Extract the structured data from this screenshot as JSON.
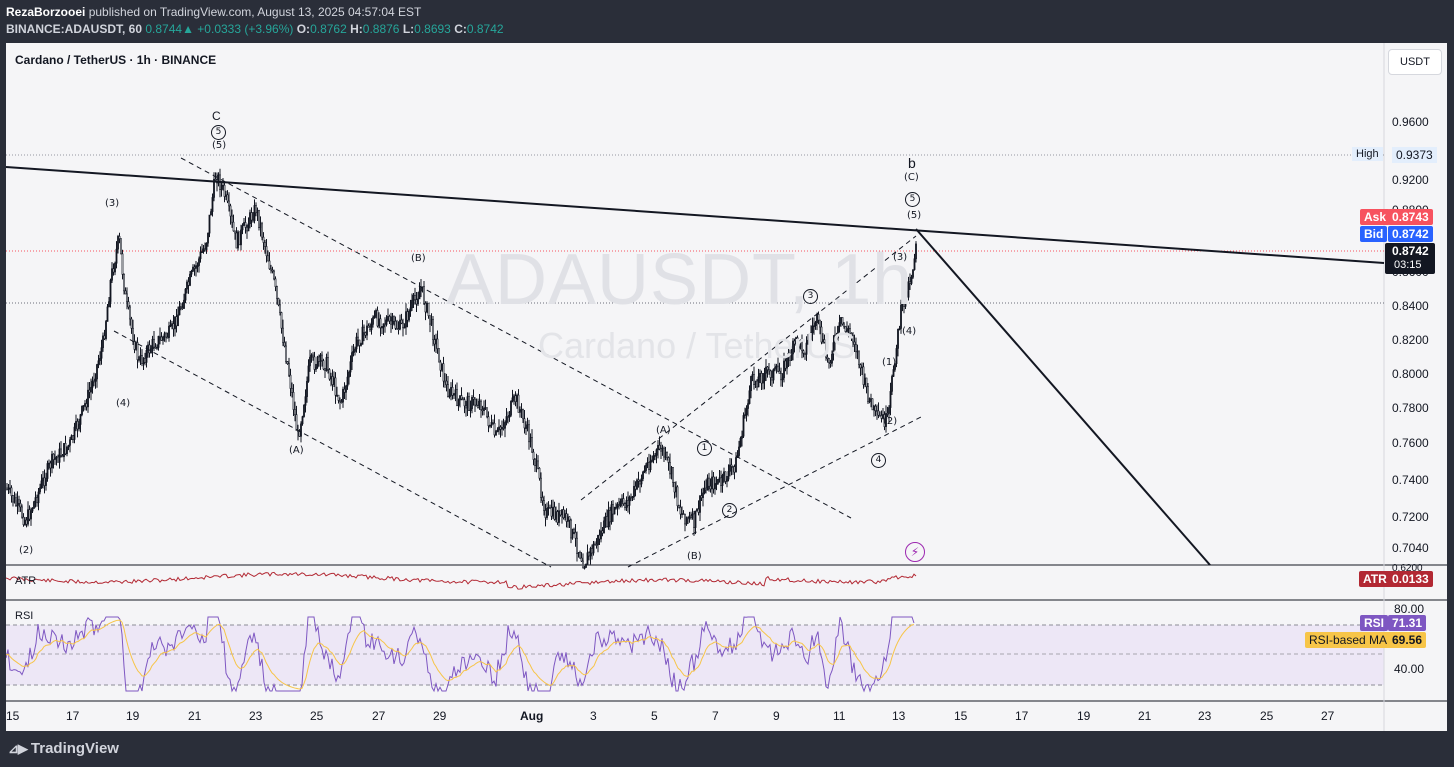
{
  "header": {
    "author": "RezaBorzooei",
    "published_text": " published on TradingView.com, August 13, 2025 04:57:04 EST",
    "symbol_line": "BINANCE:ADAUSDT, 60",
    "last": "0.8744",
    "change": "+0.0333 (+3.96%)",
    "o_label": "O:",
    "o": "0.8762",
    "h_label": "H:",
    "h": "0.8876",
    "l_label": "L:",
    "l": "0.8693",
    "c_label": "C:",
    "c": "0.8742",
    "up_arrow": "▲"
  },
  "chart": {
    "symbol_title": "Cardano / TetherUS · 1h · BINANCE",
    "watermark_symbol": "ADAUSDT, 1h",
    "watermark_name": "Cardano / TetherUS",
    "currency_button": "USDT",
    "price_axis": [
      "0.9600",
      "0.9200",
      "0.8800",
      "0.8600",
      "0.8400",
      "0.8200",
      "0.8000",
      "0.7800",
      "0.7600",
      "0.7400",
      "0.7200",
      "0.7040",
      "0.6200"
    ],
    "x_axis": [
      "15",
      "17",
      "19",
      "21",
      "23",
      "25",
      "27",
      "29",
      "Aug",
      "3",
      "5",
      "7",
      "9",
      "11",
      "13",
      "15",
      "17",
      "19",
      "21",
      "23",
      "25",
      "27"
    ],
    "high_label": "High",
    "high_value": "0.9373",
    "ask_label": "Ask",
    "ask_value": "0.8743",
    "bid_label": "Bid",
    "bid_value": "0.8742",
    "last_value": "0.8742",
    "countdown": "03:15",
    "wave_labels": {
      "c_top": "C",
      "c_circ": "5",
      "c_5": "(5)",
      "l3": "(3)",
      "l4": "(4)",
      "l2": "(2)",
      "lA": "(A)",
      "lB": "(B)",
      "b": "b",
      "bC": "(C)",
      "b_circ": "5",
      "b5": "(5)",
      "r3": "(3)",
      "r4": "(4)",
      "r1": "(1)",
      "r2": "(2)",
      "mA": "(A)",
      "mB": "(B)",
      "circ1": "1",
      "circ2": "2",
      "circ3": "3",
      "circ4": "4"
    },
    "colors": {
      "up": "#26a69a",
      "ask": "#f7525f",
      "bid": "#2962ff",
      "atr": "#b22833",
      "rsi": "#7e57c2",
      "rsi_ma": "#f7c548"
    }
  },
  "indicators": {
    "atr_label": "ATR",
    "atr_value": "0.0133",
    "rsi_label": "RSI",
    "rsi_value": "71.31",
    "rsi_ma_label": "RSI-based MA",
    "rsi_ma_value": "69.56",
    "rsi_levels": [
      "80.00",
      "40.00"
    ]
  },
  "footer": {
    "brand": "TradingView",
    "brand_icon": "tradingview-logo-icon"
  }
}
